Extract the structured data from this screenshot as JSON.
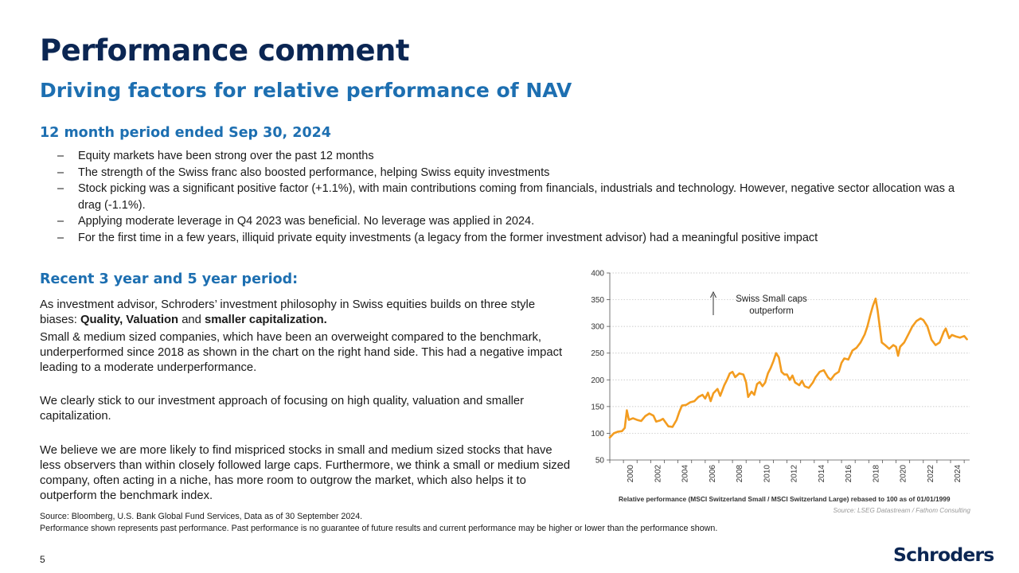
{
  "title": "Performance comment",
  "subtitle": "Driving factors for relative performance of NAV",
  "section1": {
    "heading": "12 month period ended Sep 30, 2024",
    "bullets": [
      "Equity markets have been strong over the past 12 months",
      "The strength of the Swiss franc also boosted performance, helping Swiss equity investments",
      "Stock picking was a significant positive factor (+1.1%), with main contributions coming from financials, industrials and technology. However, negative sector allocation was a drag (-1.1%).",
      "Applying moderate leverage in Q4 2023 was beneficial. No leverage was applied in 2024.",
      "For the first time in a few years, illiquid private equity investments (a legacy from the former investment advisor) had a meaningful positive impact"
    ]
  },
  "section2": {
    "heading": "Recent 3 year and 5 year period:",
    "p1_pre": "As investment advisor, Schroders’ investment philosophy in Swiss equities builds on three style biases: ",
    "p1_b1": "Quality",
    "p1_sep1": ", ",
    "p1_b2": "Valuation",
    "p1_sep2": " and ",
    "p1_b3": "smaller capitalization.",
    "p2": "Small & medium sized companies, which have been an overweight compared to the benchmark, underperformed since 2018 as shown in the chart on the right hand side. This had a negative impact leading to a moderate underperformance.",
    "p3": "We clearly stick to our investment approach of focusing on high quality, valuation and smaller capitalization.",
    "p4": "We believe we are more likely to find mispriced stocks in small and medium sized stocks that have less observers than within closely followed large caps. Furthermore, we think a small or medium sized company, often acting in a niche, has more room to outgrow the market, which also helps it to outperform the benchmark index."
  },
  "chart_data": {
    "type": "line",
    "title": "",
    "xlabel": "Relative performance (MSCI Switzerland Small / MSCI Switzerland Large) rebased to 100 as of 01/01/1999",
    "ylabel": "",
    "source": "Source: LSEG Datastream / Fathom Consulting",
    "annotation_line1": "Swiss Small caps",
    "annotation_line2": "outperform",
    "ylim": [
      50,
      400
    ],
    "xlim": [
      1999,
      2025.4
    ],
    "yticks": [
      50,
      100,
      150,
      200,
      250,
      300,
      350,
      400
    ],
    "xticks": [
      "2000",
      "2002",
      "2004",
      "2006",
      "2008",
      "2010",
      "2012",
      "2014",
      "2016",
      "2018",
      "2020",
      "2022",
      "2024"
    ],
    "series_color": "#f39c1f",
    "series": [
      {
        "name": "Relative performance",
        "points": [
          [
            1999.0,
            92
          ],
          [
            1999.3,
            100
          ],
          [
            1999.6,
            103
          ],
          [
            1999.9,
            104
          ],
          [
            2000.1,
            110
          ],
          [
            2000.25,
            143
          ],
          [
            2000.4,
            125
          ],
          [
            2000.7,
            128
          ],
          [
            2001.0,
            125
          ],
          [
            2001.3,
            123
          ],
          [
            2001.6,
            132
          ],
          [
            2001.9,
            137
          ],
          [
            2002.2,
            133
          ],
          [
            2002.4,
            122
          ],
          [
            2002.7,
            124
          ],
          [
            2002.9,
            127
          ],
          [
            2003.1,
            120
          ],
          [
            2003.3,
            113
          ],
          [
            2003.6,
            112
          ],
          [
            2003.9,
            125
          ],
          [
            2004.1,
            140
          ],
          [
            2004.3,
            152
          ],
          [
            2004.6,
            153
          ],
          [
            2004.9,
            158
          ],
          [
            2005.2,
            160
          ],
          [
            2005.5,
            168
          ],
          [
            2005.8,
            172
          ],
          [
            2006.0,
            165
          ],
          [
            2006.2,
            176
          ],
          [
            2006.4,
            160
          ],
          [
            2006.6,
            175
          ],
          [
            2006.9,
            183
          ],
          [
            2007.1,
            170
          ],
          [
            2007.4,
            190
          ],
          [
            2007.6,
            200
          ],
          [
            2007.8,
            212
          ],
          [
            2008.0,
            215
          ],
          [
            2008.2,
            205
          ],
          [
            2008.5,
            212
          ],
          [
            2008.8,
            210
          ],
          [
            2009.0,
            195
          ],
          [
            2009.15,
            168
          ],
          [
            2009.4,
            178
          ],
          [
            2009.6,
            172
          ],
          [
            2009.8,
            192
          ],
          [
            2010.0,
            196
          ],
          [
            2010.2,
            188
          ],
          [
            2010.4,
            195
          ],
          [
            2010.6,
            212
          ],
          [
            2010.8,
            222
          ],
          [
            2011.0,
            235
          ],
          [
            2011.2,
            250
          ],
          [
            2011.4,
            242
          ],
          [
            2011.6,
            215
          ],
          [
            2011.8,
            210
          ],
          [
            2012.0,
            210
          ],
          [
            2012.2,
            200
          ],
          [
            2012.4,
            208
          ],
          [
            2012.6,
            195
          ],
          [
            2012.9,
            190
          ],
          [
            2013.1,
            198
          ],
          [
            2013.3,
            188
          ],
          [
            2013.6,
            185
          ],
          [
            2013.9,
            195
          ],
          [
            2014.1,
            205
          ],
          [
            2014.4,
            215
          ],
          [
            2014.7,
            218
          ],
          [
            2015.0,
            205
          ],
          [
            2015.2,
            200
          ],
          [
            2015.5,
            210
          ],
          [
            2015.8,
            215
          ],
          [
            2016.0,
            232
          ],
          [
            2016.2,
            240
          ],
          [
            2016.5,
            238
          ],
          [
            2016.8,
            255
          ],
          [
            2017.1,
            260
          ],
          [
            2017.4,
            270
          ],
          [
            2017.7,
            285
          ],
          [
            2017.9,
            300
          ],
          [
            2018.1,
            320
          ],
          [
            2018.3,
            338
          ],
          [
            2018.5,
            352
          ],
          [
            2018.65,
            330
          ],
          [
            2018.8,
            300
          ],
          [
            2018.95,
            270
          ],
          [
            2019.2,
            265
          ],
          [
            2019.5,
            258
          ],
          [
            2019.8,
            265
          ],
          [
            2020.0,
            262
          ],
          [
            2020.15,
            245
          ],
          [
            2020.3,
            262
          ],
          [
            2020.6,
            270
          ],
          [
            2020.9,
            285
          ],
          [
            2021.2,
            300
          ],
          [
            2021.5,
            310
          ],
          [
            2021.8,
            315
          ],
          [
            2022.0,
            312
          ],
          [
            2022.3,
            300
          ],
          [
            2022.6,
            275
          ],
          [
            2022.9,
            265
          ],
          [
            2023.2,
            270
          ],
          [
            2023.5,
            290
          ],
          [
            2023.65,
            296
          ],
          [
            2023.9,
            278
          ],
          [
            2024.1,
            284
          ],
          [
            2024.4,
            281
          ],
          [
            2024.7,
            279
          ],
          [
            2025.0,
            282
          ],
          [
            2025.2,
            276
          ]
        ]
      }
    ]
  },
  "footer": {
    "source_line1": "Source: Bloomberg, U.S. Bank Global Fund Services, Data as of 30 September 2024.",
    "source_line2": "Performance shown represents past performance. Past performance is no guarantee of future results and current performance may be higher or lower than the performance shown.",
    "page_number": "5",
    "logo": "Schroders"
  }
}
